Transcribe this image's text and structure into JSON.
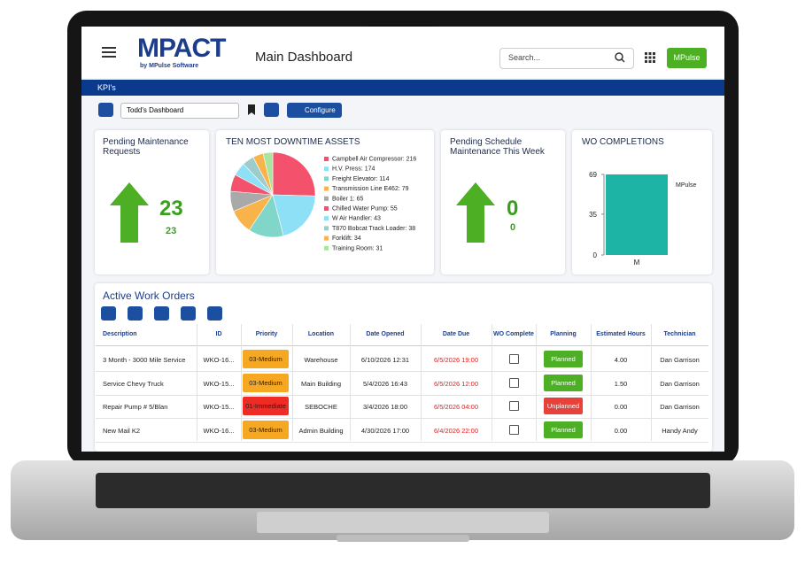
{
  "header": {
    "logo": "MPACT",
    "logo_sub": "by MPulse Software",
    "title": "Main Dashboard",
    "search_placeholder": "Search...",
    "user_button": "MPulse"
  },
  "kpi_bar": {
    "label": "KPI's"
  },
  "toolbar": {
    "dashboard": "Todd's Dashboard",
    "configure": "Configure"
  },
  "pending_maintenance": {
    "title": "Pending Maintenance Requests",
    "value": 23,
    "sub_value": 23
  },
  "downtime": {
    "type": "pie",
    "title": "TEN MOST DOWNTIME ASSETS",
    "labels": [
      "Campbell Air Compressor: 216",
      "H.V. Press: 174",
      "Freight Elevator: 114",
      "Transmission Line E462: 79",
      "Boiler 1: 65",
      "Chilled Water Pump: 55",
      "W Air Handler: 43",
      "T870 Bobcat Track Loader: 38",
      "Forklift: 34",
      "Training Room: 31"
    ],
    "values": [
      216,
      174,
      114,
      79,
      65,
      55,
      43,
      38,
      34,
      31
    ],
    "colors": [
      "#f4516c",
      "#8de0f5",
      "#7fd6c9",
      "#f8b44a",
      "#a9a9a9",
      "#f4516c",
      "#8de0f5",
      "#9ecbcb",
      "#f8b44a",
      "#a8e6a0"
    ]
  },
  "pending_schedule": {
    "title": "Pending Schedule Maintenance This Week",
    "value": 0,
    "sub_value": 0
  },
  "completions": {
    "type": "bar",
    "title": "WO COMPLETIONS",
    "categories": [
      "M"
    ],
    "series": [
      {
        "name": "MPulse",
        "color": "#1db4a6",
        "values": [
          69
        ]
      }
    ],
    "ylim": [
      0,
      69
    ],
    "yticks": [
      0,
      35,
      69
    ]
  },
  "work_orders": {
    "title": "Active Work Orders",
    "columns": [
      "Description",
      "ID",
      "Priority",
      "Location",
      "Date Opened",
      "Date Due",
      "WO Complete",
      "Planning",
      "Estimated Hours",
      "Technician"
    ],
    "rows": [
      {
        "description": "3 Month - 3000 Mile Service",
        "id": "WKO-16...",
        "priority": "03-Medium",
        "priority_color": "#f7a823",
        "location": "Warehouse",
        "date_opened": "6/10/2026 12:31",
        "date_due": "6/5/2026 19:00",
        "planning": "Planned",
        "planning_color": "#4caf24",
        "estimated_hours": "4.00",
        "technician": "Dan Garrison"
      },
      {
        "description": "Service Chevy Truck",
        "id": "WKO-15...",
        "priority": "03-Medium",
        "priority_color": "#f7a823",
        "location": "Main Building",
        "date_opened": "5/4/2026 16:43",
        "date_due": "6/5/2026 12:00",
        "planning": "Planned",
        "planning_color": "#4caf24",
        "estimated_hours": "1.50",
        "technician": "Dan Garrison"
      },
      {
        "description": "Repair Pump # 5/Blan",
        "id": "WKO-15...",
        "priority": "01-Immediate",
        "priority_color": "#ee2b24",
        "location": "SEBOCHE",
        "date_opened": "3/4/2026 18:00",
        "date_due": "6/5/2026 04:00",
        "planning": "Unplanned",
        "planning_color": "#e8413a",
        "estimated_hours": "0.00",
        "technician": "Dan Garrison"
      },
      {
        "description": "New Mail K2",
        "id": "WKO-16...",
        "priority": "03-Medium",
        "priority_color": "#f7a823",
        "location": "Admin Building",
        "date_opened": "4/30/2026 17:00",
        "date_due": "6/4/2026 22:00",
        "planning": "Planned",
        "planning_color": "#4caf24",
        "estimated_hours": "0.00",
        "technician": "Handy Andy"
      }
    ]
  }
}
